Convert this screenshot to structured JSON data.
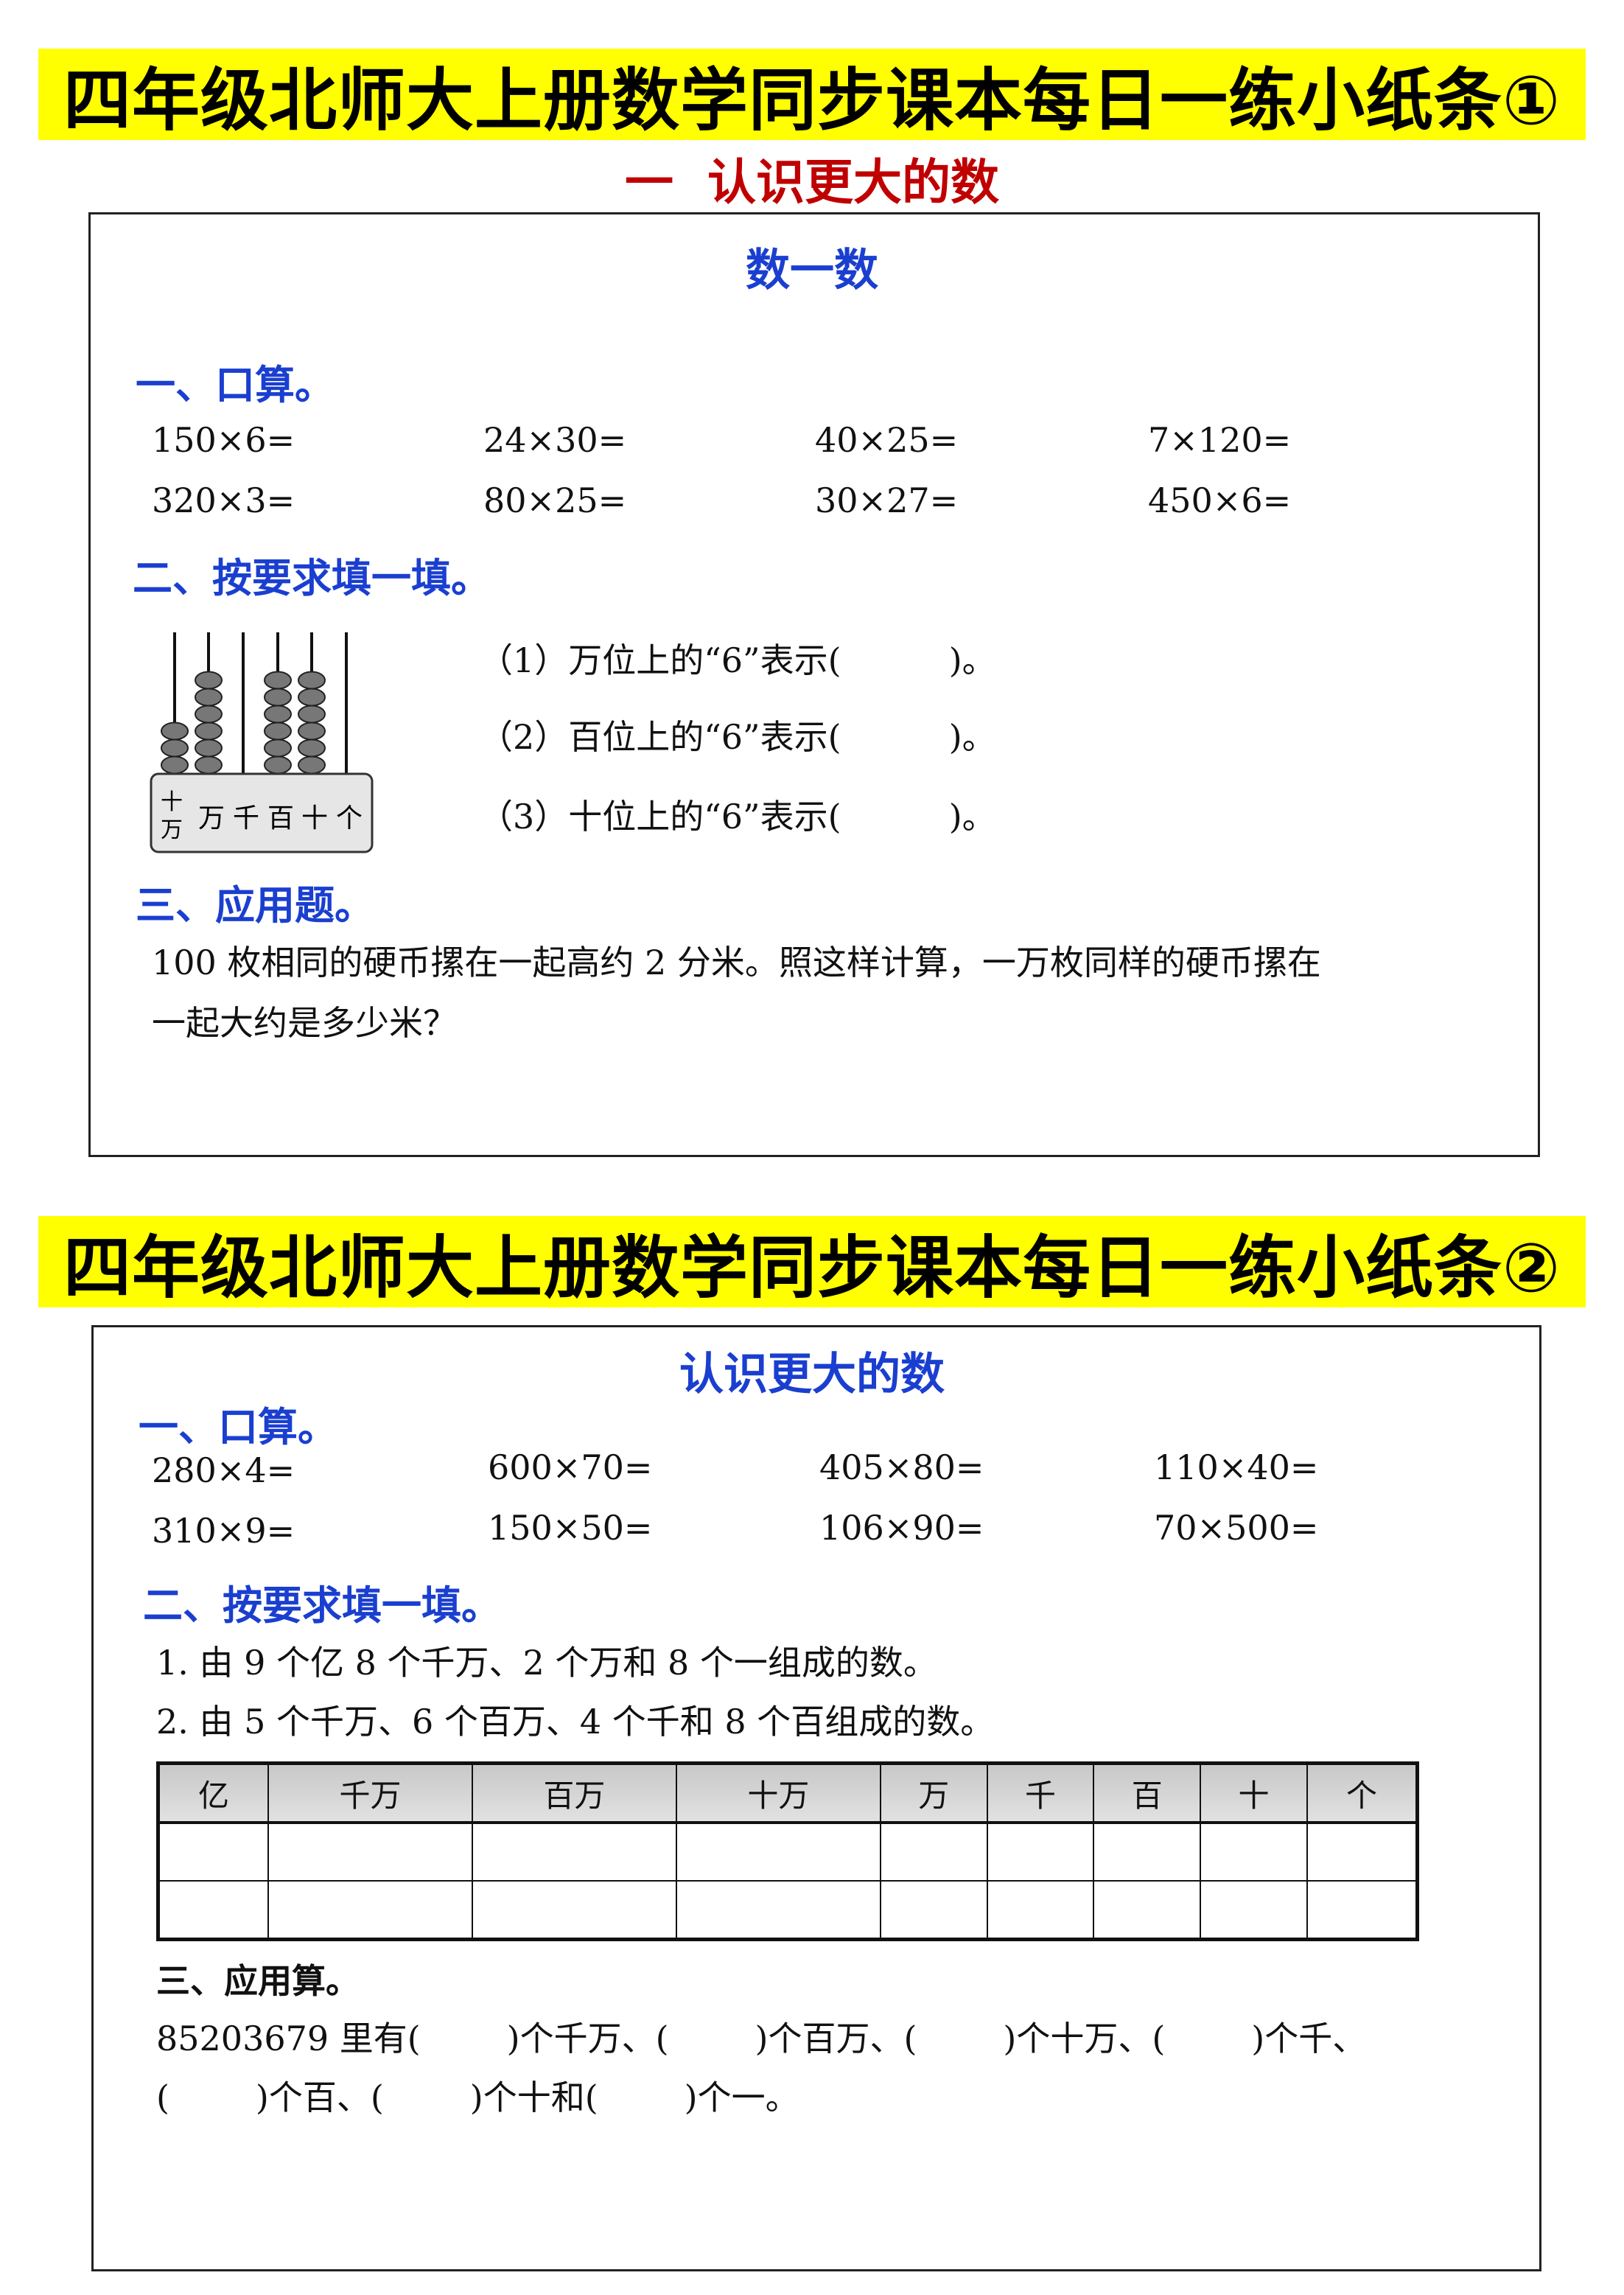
{
  "sheet1": {
    "banner": "四年级北师大上册数学同步课本每日一练小纸条①",
    "unit_title": "一  认识更大的数",
    "lesson_title": "数一数",
    "section1": {
      "heading": "一、口算。",
      "rows": [
        [
          "150×6=",
          "24×30=",
          "40×25=",
          "7×120="
        ],
        [
          "320×3=",
          "80×25=",
          "30×27=",
          "450×6="
        ]
      ]
    },
    "section2": {
      "heading": "二、按要求填一填。",
      "abacus": {
        "place_labels": [
          "十万",
          "万",
          "千",
          "百",
          "十",
          "个"
        ],
        "beads": [
          3,
          6,
          0,
          6,
          6,
          0
        ]
      },
      "items": [
        "（1）万位上的“6”表示(          )。",
        "（2）百位上的“6”表示(          )。",
        "（3）十位上的“6”表示(          )。"
      ]
    },
    "section3": {
      "heading": "三、应用题。",
      "lines": [
        "100 枚相同的硬币摞在一起高约 2 分米。照这样计算，一万枚同样的硬币摞在",
        "一起大约是多少米？"
      ]
    }
  },
  "sheet2": {
    "banner": "四年级北师大上册数学同步课本每日一练小纸条②",
    "lesson_title": "认识更大的数",
    "section1": {
      "heading": "一、口算。",
      "rows": [
        [
          "280×4=",
          "600×70=",
          "405×80=",
          "110×40="
        ],
        [
          "310×9=",
          "150×50=",
          "106×90=",
          "70×500="
        ]
      ]
    },
    "section2": {
      "heading": "二、按要求填一填。",
      "items": [
        "1. 由 9 个亿 8 个千万、2 个万和 8 个一组成的数。",
        "2. 由 5 个千万、6 个百万、4 个千和 8 个百组成的数。"
      ],
      "table_headers": [
        "亿",
        "千万",
        "百万",
        "十万",
        "万",
        "千",
        "百",
        "十",
        "个"
      ]
    },
    "section3": {
      "heading": "三、应用算。",
      "lines": [
        "85203679 里有(        )个千万、(        )个百万、(        )个十万、(        )个千、",
        "(        )个百、(        )个十和(        )个一。"
      ]
    }
  },
  "colors": {
    "banner": "#ffff00",
    "unit_title": "#c00000",
    "headings": "#1a3fd0"
  }
}
